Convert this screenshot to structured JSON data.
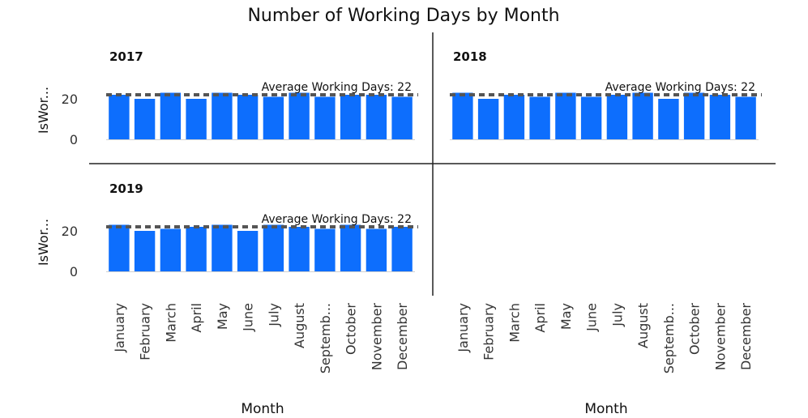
{
  "chart_data": {
    "type": "bar",
    "title": "Number of Working Days by Month",
    "xlabel": "Month",
    "ylabel": "IsWor...",
    "ylim": [
      0,
      25
    ],
    "yticks": [
      "0",
      "20"
    ],
    "bar_color": "#0d6efd",
    "avg_line_color": "#555555",
    "categories": [
      "January",
      "February",
      "March",
      "April",
      "May",
      "June",
      "July",
      "August",
      "Septemb...",
      "October",
      "November",
      "December"
    ],
    "panels": [
      {
        "name": "2017",
        "values": [
          22,
          20,
          23,
          20,
          23,
          22,
          21,
          23,
          21,
          22,
          22,
          21
        ],
        "average": 22,
        "average_label": "Average Working Days: 22"
      },
      {
        "name": "2018",
        "values": [
          23,
          20,
          22,
          21,
          23,
          21,
          22,
          23,
          20,
          23,
          22,
          21
        ],
        "average": 22,
        "average_label": "Average Working Days: 22"
      },
      {
        "name": "2019",
        "values": [
          23,
          20,
          21,
          22,
          23,
          20,
          23,
          22,
          21,
          23,
          21,
          22
        ],
        "average": 22,
        "average_label": "Average Working Days: 22"
      }
    ]
  }
}
